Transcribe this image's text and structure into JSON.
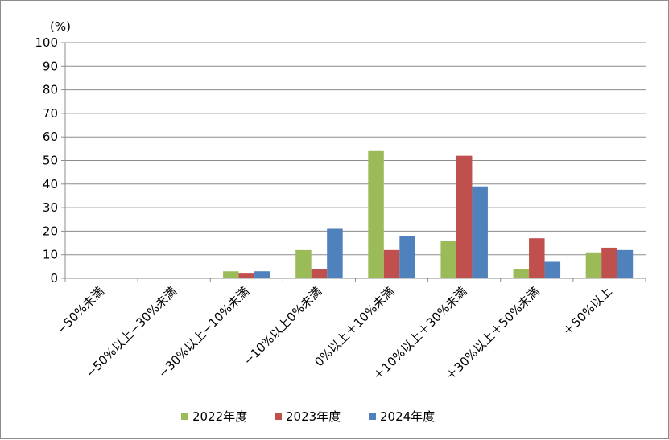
{
  "chart_data": {
    "type": "bar",
    "ylabel": "(%)",
    "ylim": [
      0,
      100
    ],
    "yticks": [
      0,
      10,
      20,
      30,
      40,
      50,
      60,
      70,
      80,
      90,
      100
    ],
    "grid": true,
    "legend_position": "bottom",
    "categories": [
      "−50%未満",
      "−50%以上−30%未満",
      "−30%以上−10%未満",
      "−10%以上0%未満",
      "0%以上＋10%未満",
      "＋10%以上＋30%未満",
      "＋30%以上＋50%未満",
      "＋50%以上"
    ],
    "series": [
      {
        "name": "2022年度",
        "color": "#9bbb59",
        "values": [
          0,
          0,
          3,
          12,
          54,
          16,
          4,
          11
        ]
      },
      {
        "name": "2023年度",
        "color": "#c0504d",
        "values": [
          0,
          0,
          2,
          4,
          12,
          52,
          17,
          13
        ]
      },
      {
        "name": "2024年度",
        "color": "#4f81bd",
        "values": [
          0,
          0,
          3,
          21,
          18,
          39,
          7,
          12
        ]
      }
    ]
  }
}
